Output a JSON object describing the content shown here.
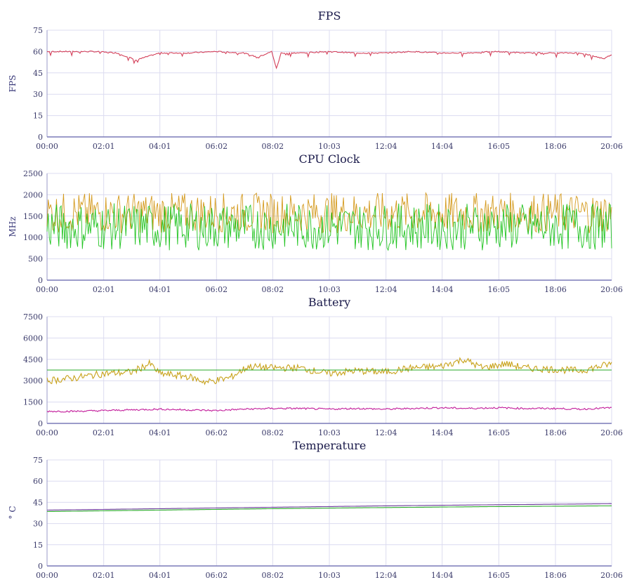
{
  "chart_data": [
    {
      "type": "line",
      "title": "FPS",
      "ylabel": "FPS",
      "xlabel": "",
      "ylim": [
        0,
        75
      ],
      "yticks": [
        0,
        15,
        30,
        45,
        60,
        75
      ],
      "xlim": [
        "00:00",
        "20:06"
      ],
      "xticks": [
        "00:00",
        "02:01",
        "04:01",
        "06:02",
        "08:02",
        "10:03",
        "12:04",
        "14:04",
        "16:05",
        "18:06",
        "20:06"
      ],
      "grid": true,
      "series": [
        {
          "color": "#d4405a",
          "x": [
            "00:00",
            "01:00",
            "01:40",
            "02:30",
            "03:10",
            "04:00",
            "05:00",
            "06:00",
            "07:00",
            "07:30",
            "08:00",
            "08:10",
            "08:20",
            "09:00",
            "10:00",
            "11:00",
            "12:00",
            "13:00",
            "14:00",
            "15:00",
            "16:00",
            "17:00",
            "18:00",
            "19:00",
            "19:50",
            "20:06"
          ],
          "values": [
            60,
            60,
            60,
            59,
            54,
            59,
            59,
            60,
            59,
            56,
            60,
            48,
            59,
            59,
            60,
            59,
            59,
            60,
            59,
            59,
            60,
            59,
            59,
            59,
            55,
            58
          ]
        }
      ]
    },
    {
      "type": "line",
      "title": "CPU Clock",
      "ylabel": "MHz",
      "xlabel": "",
      "ylim": [
        0,
        2500
      ],
      "yticks": [
        0,
        500,
        1000,
        1500,
        2000,
        2500
      ],
      "xlim": [
        "00:00",
        "20:06"
      ],
      "xticks": [
        "00:00",
        "02:01",
        "04:01",
        "06:02",
        "08:02",
        "10:03",
        "12:04",
        "14:04",
        "16:05",
        "18:06",
        "20:06"
      ],
      "grid": true,
      "series": [
        {
          "color": "#d49a1e",
          "x": [
            "00:00",
            "01:00",
            "02:00",
            "03:00",
            "04:00",
            "05:00",
            "06:00",
            "07:00",
            "08:00",
            "09:00",
            "10:00",
            "11:00",
            "12:00",
            "13:00",
            "14:00",
            "15:00",
            "16:00",
            "17:00",
            "18:00",
            "19:00",
            "20:06"
          ],
          "values": [
            1500,
            1600,
            1450,
            1700,
            1550,
            1650,
            1500,
            1600,
            1700,
            1550,
            1500,
            1650,
            1600,
            1550,
            1700,
            1600,
            1650,
            1550,
            1600,
            1700,
            1600
          ],
          "min": 1100,
          "max": 2050
        },
        {
          "color": "#22c422",
          "x": [
            "00:00",
            "01:00",
            "02:00",
            "03:00",
            "04:00",
            "05:00",
            "06:00",
            "07:00",
            "08:00",
            "09:00",
            "10:00",
            "11:00",
            "12:00",
            "13:00",
            "14:00",
            "15:00",
            "16:00",
            "17:00",
            "18:00",
            "19:00",
            "20:06"
          ],
          "values": [
            1200,
            1150,
            1250,
            1100,
            1200,
            1150,
            1200,
            1100,
            1150,
            1200,
            1250,
            1100,
            1200,
            1150,
            1100,
            1200,
            1150,
            1100,
            1050,
            1100,
            1000
          ],
          "min": 700,
          "max": 1800
        }
      ]
    },
    {
      "type": "line",
      "title": "Battery",
      "ylabel": "",
      "xlabel": "",
      "ylim": [
        0,
        7500
      ],
      "yticks": [
        0,
        1500,
        3000,
        4500,
        6000,
        7500
      ],
      "xlim": [
        "00:00",
        "20:06"
      ],
      "xticks": [
        "00:00",
        "02:01",
        "04:01",
        "06:02",
        "08:02",
        "10:03",
        "12:04",
        "14:04",
        "16:05",
        "18:06",
        "20:06"
      ],
      "grid": true,
      "series": [
        {
          "color": "#c8a21a",
          "x": [
            "00:00",
            "01:00",
            "02:00",
            "03:00",
            "03:40",
            "04:00",
            "05:00",
            "05:40",
            "06:30",
            "07:10",
            "08:00",
            "09:00",
            "10:00",
            "11:00",
            "12:00",
            "13:00",
            "14:00",
            "14:50",
            "15:30",
            "16:20",
            "17:00",
            "18:00",
            "19:00",
            "20:06"
          ],
          "values": [
            3000,
            3200,
            3500,
            3600,
            4200,
            3500,
            3300,
            2900,
            3200,
            4000,
            3900,
            3900,
            3500,
            3700,
            3600,
            3900,
            4000,
            4500,
            3900,
            4200,
            3900,
            3800,
            3700,
            4200
          ]
        },
        {
          "color": "#2aaa2a",
          "x": [
            "00:00",
            "20:06"
          ],
          "values": [
            3750,
            3750
          ]
        },
        {
          "color": "#c21a9a",
          "x": [
            "00:00",
            "01:00",
            "02:00",
            "03:00",
            "04:00",
            "05:00",
            "06:00",
            "07:00",
            "08:00",
            "09:00",
            "10:00",
            "11:00",
            "12:00",
            "13:00",
            "14:00",
            "15:00",
            "16:00",
            "17:00",
            "18:00",
            "19:00",
            "20:06"
          ],
          "values": [
            850,
            850,
            900,
            950,
            1000,
            950,
            900,
            1000,
            1050,
            1050,
            1000,
            1050,
            1000,
            1050,
            1100,
            1050,
            1100,
            1050,
            1050,
            1000,
            1100
          ]
        }
      ]
    },
    {
      "type": "line",
      "title": "Temperature",
      "ylabel": "° C",
      "xlabel": "",
      "ylim": [
        0,
        75
      ],
      "yticks": [
        0,
        15,
        30,
        45,
        60,
        75
      ],
      "xlim": [
        "00:00",
        "20:06"
      ],
      "xticks": [
        "00:00",
        "02:01",
        "04:01",
        "06:02",
        "08:02",
        "10:03",
        "12:04",
        "14:04",
        "16:05",
        "18:06",
        "20:06"
      ],
      "grid": true,
      "series": [
        {
          "color": "#6a3a9a",
          "x": [
            "00:00",
            "04:00",
            "08:00",
            "12:00",
            "16:00",
            "20:06"
          ],
          "values": [
            39.5,
            40.5,
            41.5,
            42.5,
            43.3,
            44
          ]
        },
        {
          "color": "#2aaa2a",
          "x": [
            "00:00",
            "04:00",
            "08:00",
            "12:00",
            "16:00",
            "20:06"
          ],
          "values": [
            38.5,
            39.5,
            40.5,
            41.3,
            42,
            42.5
          ]
        }
      ]
    }
  ]
}
